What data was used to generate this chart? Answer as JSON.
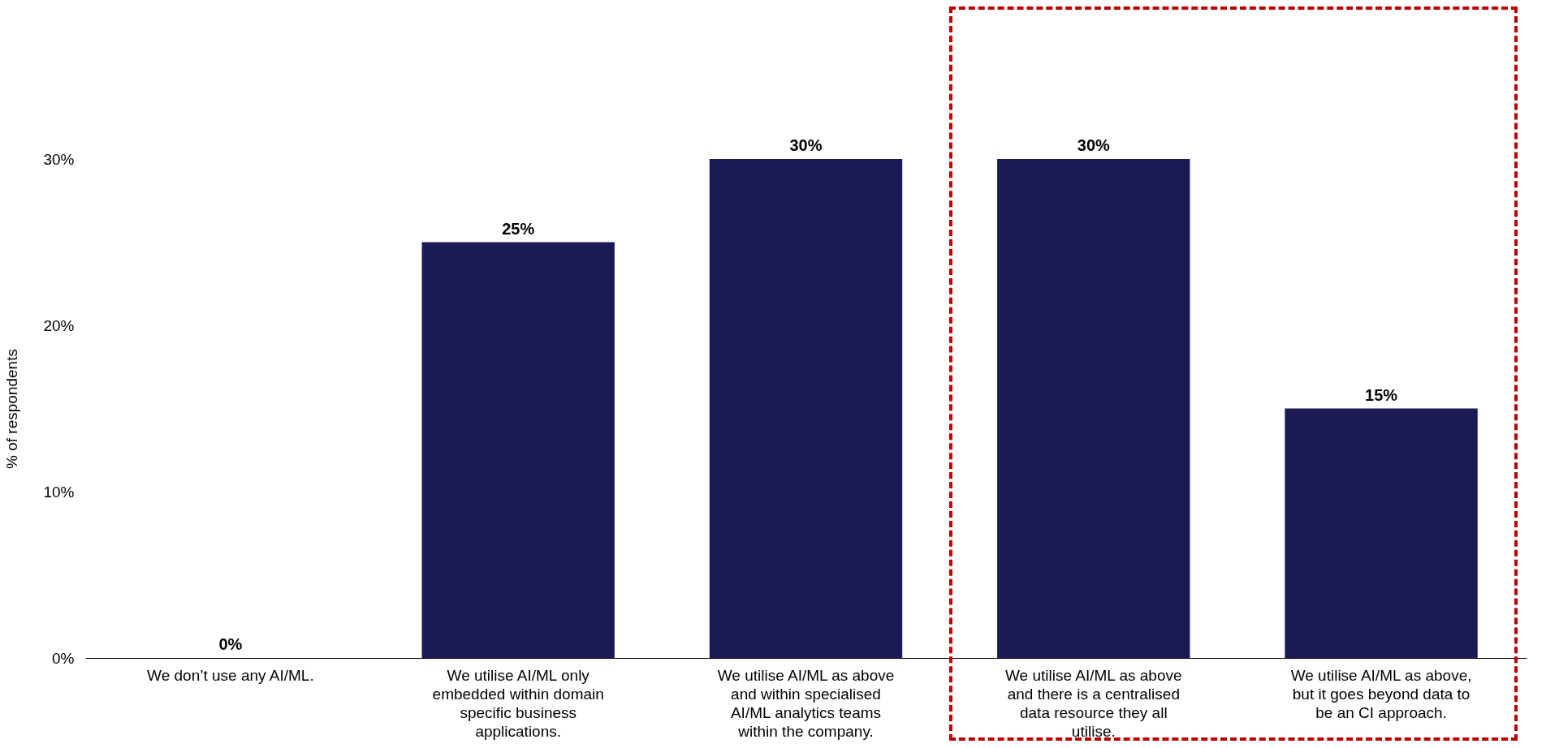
{
  "chart_data": {
    "type": "bar",
    "ylabel": "% of respondents",
    "categories": [
      "We don’t use any AI/ML.",
      "We utilise AI/ML only embedded within domain specific business applications.",
      "We utilise AI/ML as above and within specialised AI/ML analytics teams within the company.",
      "We utilise AI/ML as above and there is a centralised data resource they all utilise.",
      "We utilise AI/ML as above, but it goes beyond data to be an CI approach."
    ],
    "values": [
      0,
      25,
      30,
      30,
      15
    ],
    "value_labels": [
      "0%",
      "25%",
      "30%",
      "30%",
      "15%"
    ],
    "color": "#1b1a55",
    "ylim": [
      0,
      30
    ],
    "yticks": [
      {
        "value": 0,
        "label": "0%"
      },
      {
        "value": 10,
        "label": "10%"
      },
      {
        "value": 20,
        "label": "20%"
      },
      {
        "value": 30,
        "label": "30%"
      }
    ],
    "grid": false
  }
}
